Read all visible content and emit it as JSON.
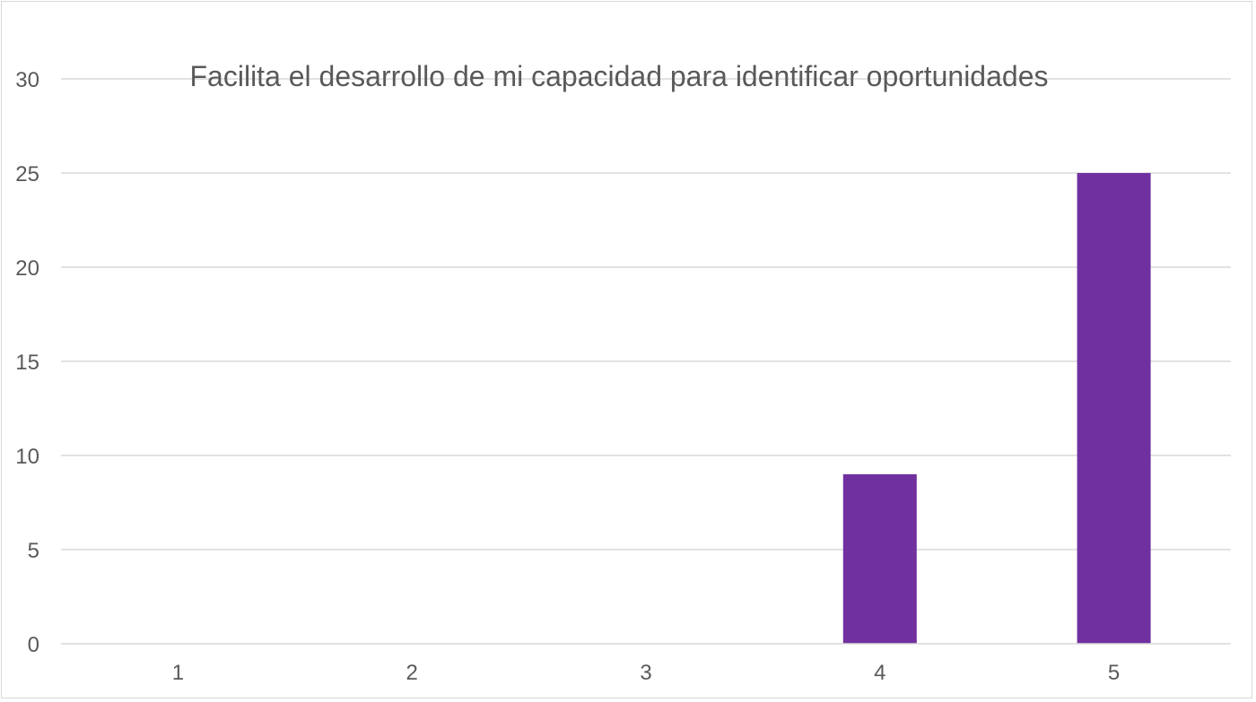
{
  "chart_data": {
    "type": "bar",
    "title": "Facilita el desarrollo de mi capacidad para identificar oportunidades",
    "xlabel": "",
    "ylabel": "",
    "categories": [
      "1",
      "2",
      "3",
      "4",
      "5"
    ],
    "values": [
      0,
      0,
      0,
      9,
      25
    ],
    "ylim": [
      0,
      30
    ],
    "yticks": [
      "0",
      "5",
      "10",
      "15",
      "20",
      "25",
      "30"
    ],
    "grid": true,
    "legend": "none",
    "bar_color": "#7030a0"
  }
}
